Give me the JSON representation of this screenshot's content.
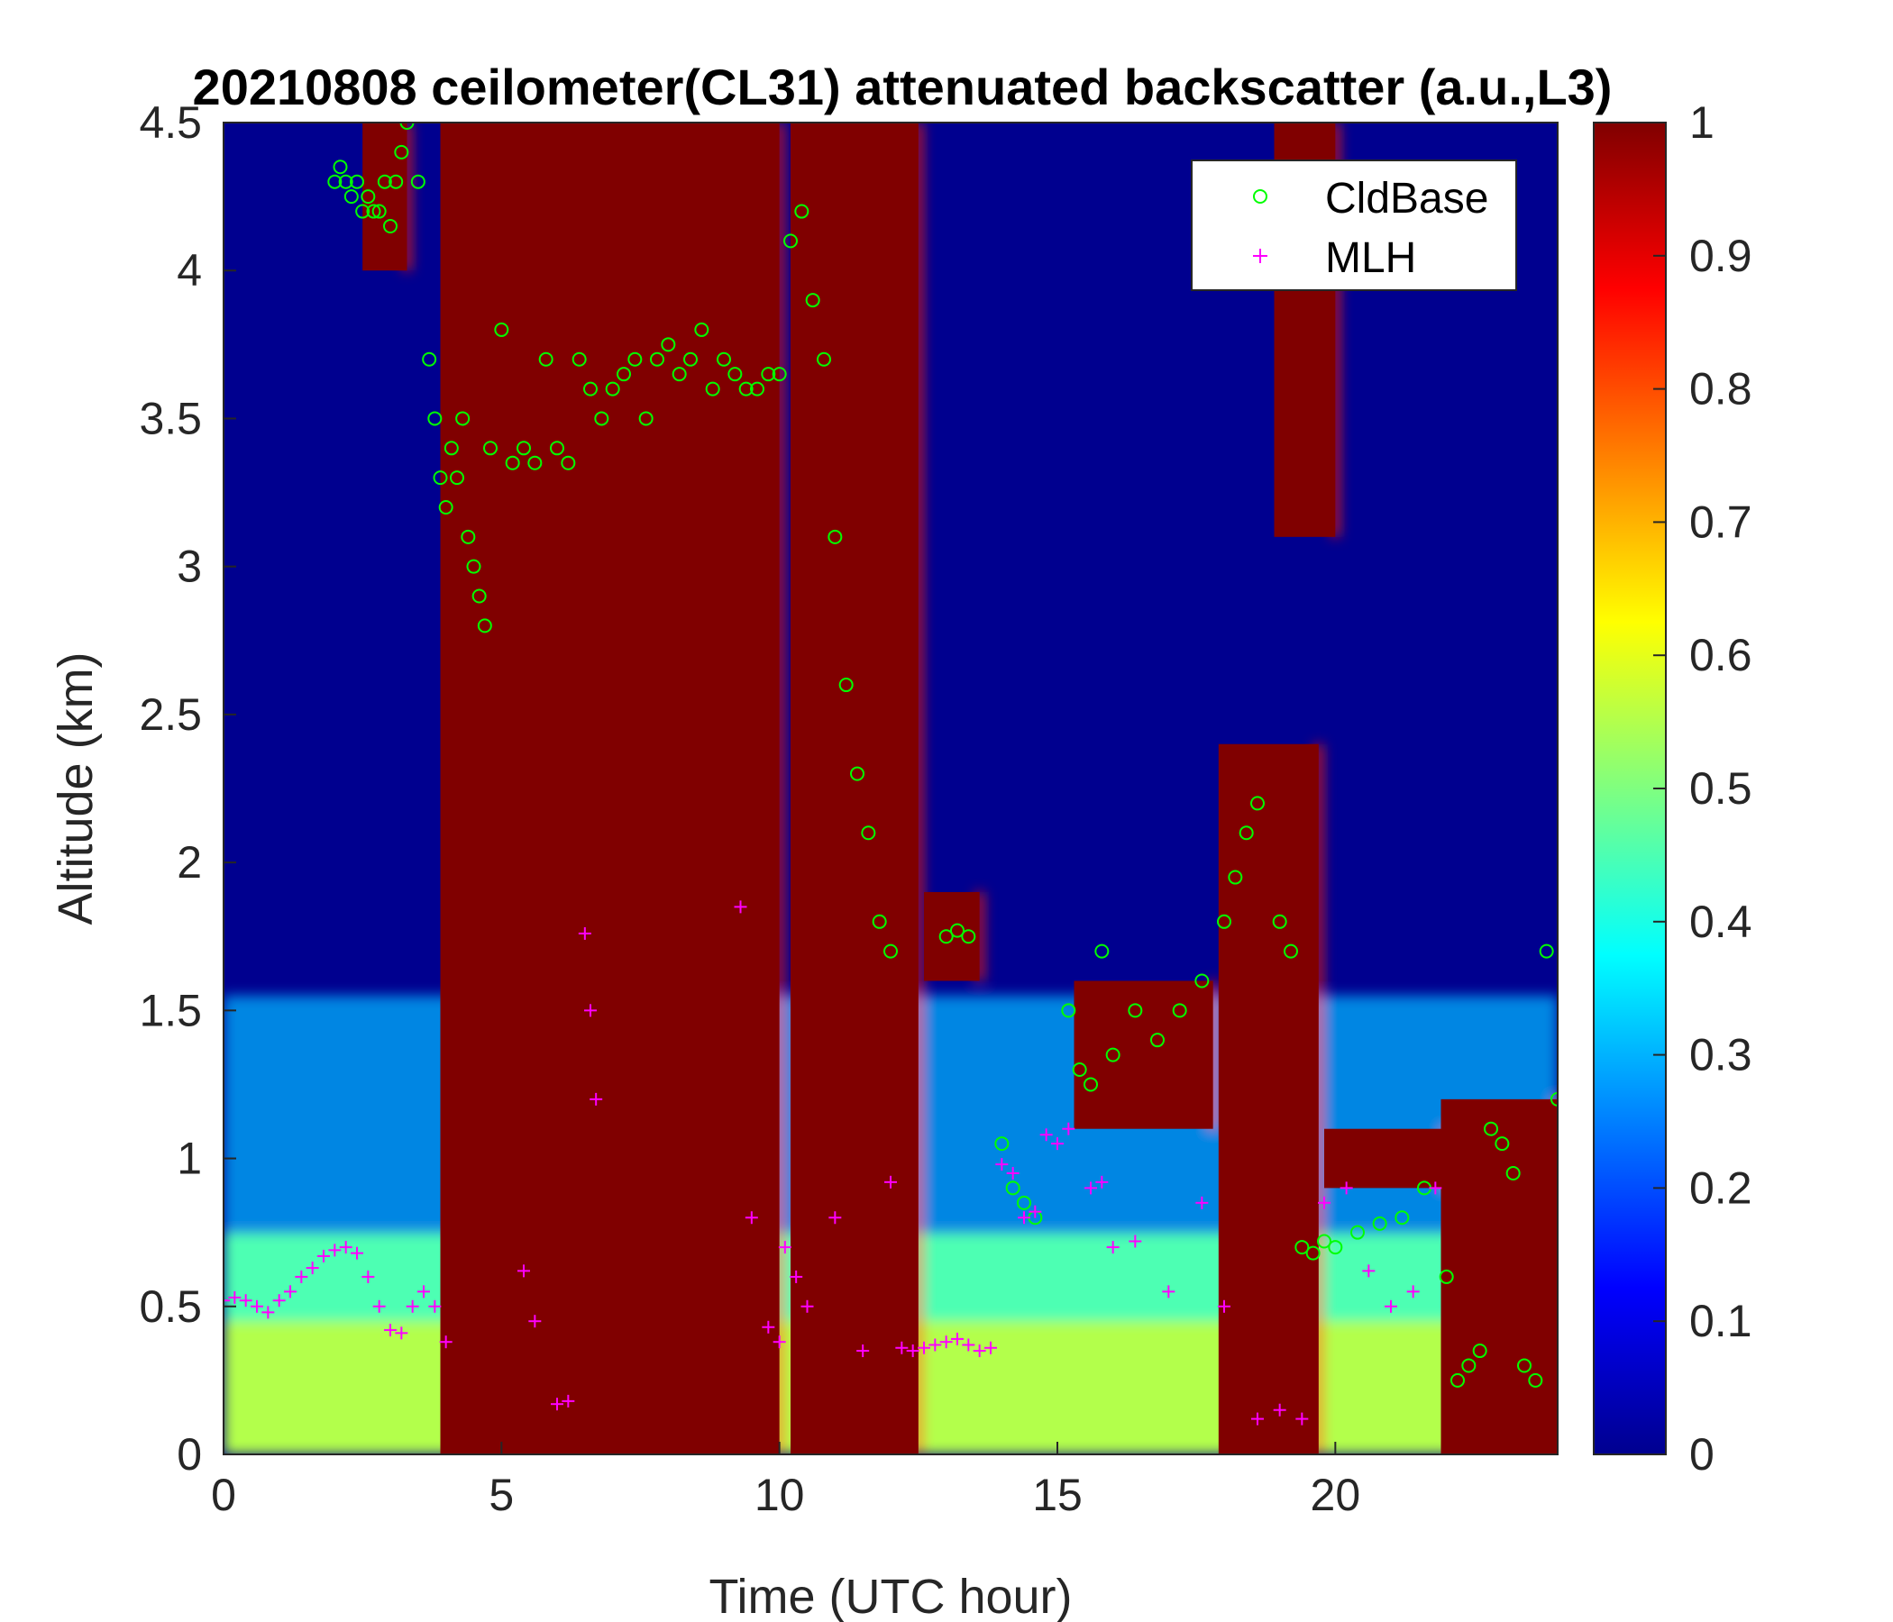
{
  "chart_data": {
    "type": "heatmap",
    "title": "20210808 ceilometer(CL31) attenuated backscatter (a.u.,L3)",
    "xlabel": "Time (UTC hour)",
    "ylabel": "Altitude (km)",
    "xlim": [
      0,
      24
    ],
    "ylim": [
      0,
      4.5
    ],
    "x_ticks": [
      0,
      5,
      10,
      15,
      20
    ],
    "x_tick_labels": [
      "0",
      "5",
      "10",
      "15",
      "20"
    ],
    "y_ticks": [
      0,
      0.5,
      1,
      1.5,
      2,
      2.5,
      3,
      3.5,
      4,
      4.5
    ],
    "y_tick_labels": [
      "0",
      "0.5",
      "1",
      "1.5",
      "2",
      "2.5",
      "3",
      "3.5",
      "4",
      "4.5"
    ],
    "colorbar": {
      "colormap": "jet",
      "clim": [
        0,
        1
      ],
      "ticks": [
        0,
        0.1,
        0.2,
        0.3,
        0.4,
        0.5,
        0.6,
        0.7,
        0.8,
        0.9,
        1
      ],
      "tick_labels": [
        "0",
        "0.1",
        "0.2",
        "0.3",
        "0.4",
        "0.5",
        "0.6",
        "0.7",
        "0.8",
        "0.9",
        "1"
      ]
    },
    "legend": {
      "placement": "top-right",
      "entries": [
        {
          "label": "CldBase",
          "marker": "o",
          "color": "#00ff00"
        },
        {
          "label": "MLH",
          "marker": "+",
          "color": "#ff00ff"
        }
      ]
    },
    "field_regions": {
      "saturated_clouds": [
        {
          "x0": 3.9,
          "x1": 10.0,
          "ytop": 4.5,
          "value": 1.0
        },
        {
          "x0": 10.2,
          "x1": 12.5,
          "ytop": 4.5,
          "value": 1.0
        },
        {
          "x0": 2.5,
          "x1": 3.3,
          "ybottom": 4.0,
          "ytop": 4.5,
          "value": 1.0
        },
        {
          "x0": 12.6,
          "x1": 13.6,
          "ybottom": 1.6,
          "ytop": 1.9,
          "value": 1.0
        },
        {
          "x0": 18.9,
          "x1": 20.0,
          "ytop": 4.5,
          "ybottom": 3.1,
          "value": 1.0
        },
        {
          "x0": 17.9,
          "x1": 19.7,
          "ytop": 2.4,
          "value": 1.0
        },
        {
          "x0": 15.3,
          "x1": 17.8,
          "ybottom": 1.1,
          "ytop": 1.6,
          "value": 1.0
        },
        {
          "x0": 19.8,
          "x1": 22.0,
          "ybottom": 0.9,
          "ytop": 1.1,
          "value": 1.0
        },
        {
          "x0": 21.9,
          "x1": 24.0,
          "ybottom": 0.0,
          "ytop": 1.2,
          "value": 1.0
        }
      ],
      "boundary_layer_level": 0.55,
      "residual_layer_level": 0.3
    },
    "series": [
      {
        "name": "CldBase",
        "marker": "o",
        "color": "#00ff00",
        "x": [
          2.0,
          2.1,
          2.2,
          2.3,
          2.4,
          2.5,
          2.6,
          2.7,
          2.8,
          2.9,
          3.0,
          3.1,
          3.2,
          3.3,
          3.5,
          3.7,
          3.8,
          3.9,
          4.0,
          4.1,
          4.2,
          4.3,
          4.4,
          4.5,
          4.6,
          4.7,
          4.8,
          5.0,
          5.2,
          5.4,
          5.6,
          5.8,
          6.0,
          6.2,
          6.4,
          6.6,
          6.8,
          7.0,
          7.2,
          7.4,
          7.6,
          7.8,
          8.0,
          8.2,
          8.4,
          8.6,
          8.8,
          9.0,
          9.2,
          9.4,
          9.6,
          9.8,
          10.0,
          10.2,
          10.4,
          10.6,
          10.8,
          11.0,
          11.2,
          11.4,
          11.6,
          11.8,
          12.0,
          13.0,
          13.2,
          13.4,
          14.0,
          14.2,
          14.4,
          14.6,
          15.2,
          15.4,
          15.6,
          15.8,
          16.0,
          16.4,
          16.8,
          17.2,
          17.6,
          18.0,
          18.2,
          18.4,
          18.6,
          19.0,
          19.2,
          19.4,
          19.6,
          19.8,
          20.0,
          20.4,
          20.8,
          21.2,
          21.6,
          22.0,
          22.2,
          22.4,
          22.6,
          22.8,
          23.0,
          23.2,
          23.4,
          23.6,
          23.8,
          24.0
        ],
        "y": [
          4.3,
          4.35,
          4.3,
          4.25,
          4.3,
          4.2,
          4.25,
          4.2,
          4.2,
          4.3,
          4.15,
          4.3,
          4.4,
          4.5,
          4.3,
          3.7,
          3.5,
          3.3,
          3.2,
          3.4,
          3.3,
          3.5,
          3.1,
          3.0,
          2.9,
          2.8,
          3.4,
          3.8,
          3.35,
          3.4,
          3.35,
          3.7,
          3.4,
          3.35,
          3.7,
          3.6,
          3.5,
          3.6,
          3.65,
          3.7,
          3.5,
          3.7,
          3.75,
          3.65,
          3.7,
          3.8,
          3.6,
          3.7,
          3.65,
          3.6,
          3.6,
          3.65,
          3.65,
          4.1,
          4.2,
          3.9,
          3.7,
          3.1,
          2.6,
          2.3,
          2.1,
          1.8,
          1.7,
          1.75,
          1.77,
          1.75,
          1.05,
          0.9,
          0.85,
          0.8,
          1.5,
          1.3,
          1.25,
          1.7,
          1.35,
          1.5,
          1.4,
          1.5,
          1.6,
          1.8,
          1.95,
          2.1,
          2.2,
          1.8,
          1.7,
          0.7,
          0.68,
          0.72,
          0.7,
          0.75,
          0.78,
          0.8,
          0.9,
          0.6,
          0.25,
          0.3,
          0.35,
          1.1,
          1.05,
          0.95,
          0.3,
          0.25,
          1.7,
          1.2
        ]
      },
      {
        "name": "MLH",
        "marker": "+",
        "color": "#ff00ff",
        "x": [
          0.0,
          0.2,
          0.4,
          0.6,
          0.8,
          1.0,
          1.2,
          1.4,
          1.6,
          1.8,
          2.0,
          2.2,
          2.4,
          2.6,
          2.8,
          3.0,
          3.2,
          3.4,
          3.6,
          3.8,
          4.0,
          5.4,
          5.6,
          6.0,
          6.2,
          6.5,
          6.6,
          6.7,
          9.3,
          9.5,
          9.8,
          10.0,
          10.1,
          10.3,
          10.5,
          11.0,
          11.5,
          12.0,
          12.2,
          12.4,
          12.6,
          12.8,
          13.0,
          13.2,
          13.4,
          13.6,
          13.8,
          14.0,
          14.2,
          14.4,
          14.6,
          14.8,
          15.0,
          15.2,
          15.6,
          15.8,
          16.0,
          16.4,
          17.0,
          17.6,
          18.0,
          18.6,
          19.0,
          19.4,
          19.8,
          20.2,
          20.6,
          21.0,
          21.4,
          21.8
        ],
        "y": [
          0.52,
          0.53,
          0.52,
          0.5,
          0.48,
          0.52,
          0.55,
          0.6,
          0.63,
          0.67,
          0.69,
          0.7,
          0.68,
          0.6,
          0.5,
          0.42,
          0.41,
          0.5,
          0.55,
          0.5,
          0.38,
          0.62,
          0.45,
          0.17,
          0.18,
          1.76,
          1.5,
          1.2,
          1.85,
          0.8,
          0.43,
          0.38,
          0.7,
          0.6,
          0.5,
          0.8,
          0.35,
          0.92,
          0.36,
          0.35,
          0.36,
          0.37,
          0.38,
          0.39,
          0.37,
          0.35,
          0.36,
          0.98,
          0.95,
          0.8,
          0.82,
          1.08,
          1.05,
          1.1,
          0.9,
          0.92,
          0.7,
          0.72,
          0.55,
          0.85,
          0.5,
          0.12,
          0.15,
          0.12,
          0.85,
          0.9,
          0.62,
          0.5,
          0.55,
          0.9
        ]
      }
    ]
  }
}
